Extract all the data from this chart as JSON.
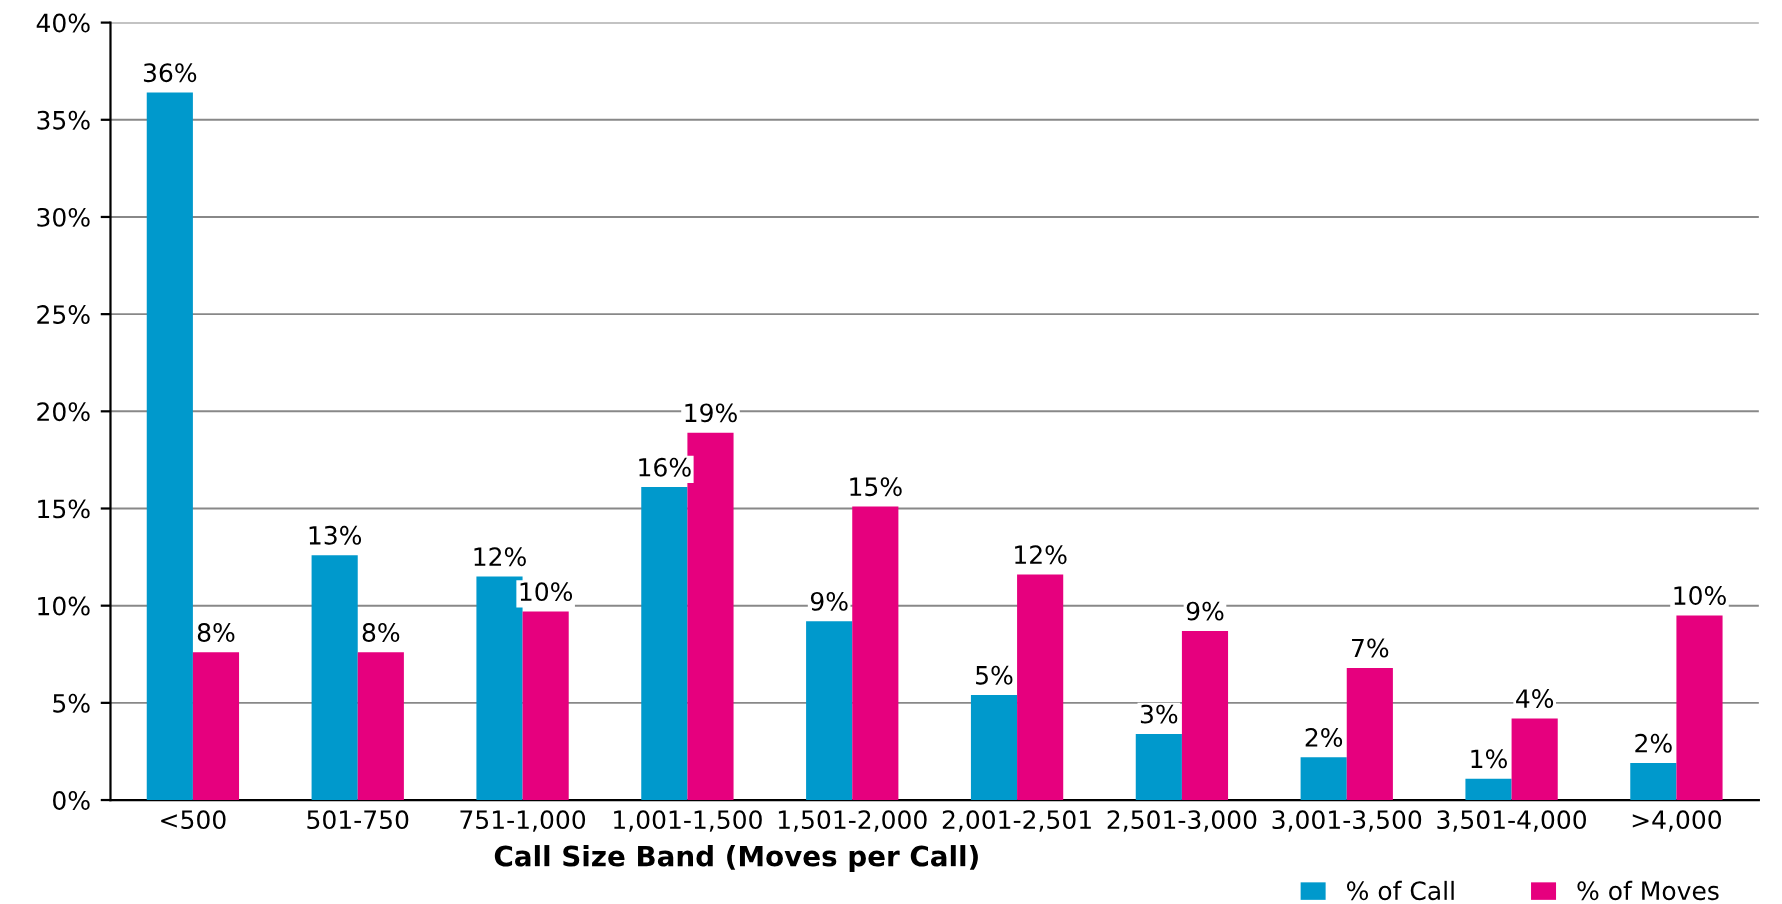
{
  "chart_data": {
    "type": "bar",
    "xlabel": "Call Size Band (Moves per Call)",
    "categories": [
      "<500",
      "501-750",
      "751-1,000",
      "1,001-1,500",
      "1,501-2,000",
      "2,001-2,501",
      "2,501-3,000",
      "3,001-3,500",
      "3,501-4,000",
      ">4,000"
    ],
    "series": [
      {
        "name": "% of Call",
        "color": "#0099cc",
        "values": [
          36.4,
          12.6,
          11.5,
          16.1,
          9.2,
          5.4,
          3.4,
          2.2,
          1.1,
          1.9
        ],
        "value_labels": [
          "36%",
          "13%",
          "12%",
          "16%",
          "9%",
          "5%",
          "3%",
          "2%",
          "1%",
          "2%"
        ]
      },
      {
        "name": "% of Moves",
        "color": "#e6007e",
        "values": [
          7.6,
          7.6,
          9.7,
          18.9,
          15.1,
          11.6,
          8.7,
          6.8,
          4.2,
          9.5
        ],
        "value_labels": [
          "8%",
          "8%",
          "10%",
          "19%",
          "15%",
          "12%",
          "9%",
          "7%",
          "4%",
          "10%"
        ]
      }
    ],
    "ylim": [
      0,
      40
    ],
    "yticks": [
      {
        "value": 0,
        "label": "0%"
      },
      {
        "value": 5,
        "label": "5%"
      },
      {
        "value": 10,
        "label": "10%"
      },
      {
        "value": 15,
        "label": "15%"
      },
      {
        "value": 20,
        "label": "20%"
      },
      {
        "value": 25,
        "label": "25%"
      },
      {
        "value": 30,
        "label": "30%"
      },
      {
        "value": 35,
        "label": "35%"
      },
      {
        "value": 40,
        "label": "40%"
      }
    ],
    "grid": "y",
    "legend": "bottom right"
  }
}
